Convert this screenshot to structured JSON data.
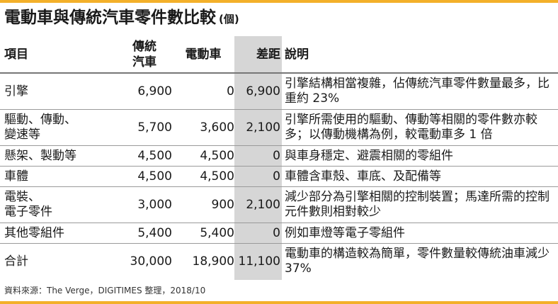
{
  "title": "電動車與傳統汽車零件數比較",
  "unit": "(個)",
  "headers": {
    "item": "項目",
    "conventional": "傳統\n汽車",
    "ev": "電動車",
    "gap": "差距",
    "note": "說明"
  },
  "rows": [
    {
      "item": "引擎",
      "conventional": "6,900",
      "ev": "0",
      "gap": "6,900",
      "note": "引擎結構相當複雜，佔傳統汽車零件數量最多，比重約 23%"
    },
    {
      "item": "驅動、傳動、\n變速等",
      "conventional": "5,700",
      "ev": "3,600",
      "gap": "2,100",
      "note": "引擎所需使用的驅動、傳動等相關的零件數亦較多；以傳動機構為例，較電動車多 1 倍"
    },
    {
      "item": "懸架、製動等",
      "conventional": "4,500",
      "ev": "4,500",
      "gap": "0",
      "note": "與車身穩定、避震相關的零組件"
    },
    {
      "item": "車體",
      "conventional": "4,500",
      "ev": "4,500",
      "gap": "0",
      "note": "車體含車殼、車底、及配備等"
    },
    {
      "item": "電裝、\n電子零件",
      "conventional": "3,000",
      "ev": "900",
      "gap": "2,100",
      "note": "減少部分為引擎相關的控制裝置；馬達所需的控制元件數則相對較少"
    },
    {
      "item": "其他零組件",
      "conventional": "5,400",
      "ev": "5,400",
      "gap": "0",
      "note": "例如車燈等電子零組件"
    },
    {
      "item": "合計",
      "conventional": "30,000",
      "ev": "18,900",
      "gap": "11,100",
      "note": "電動車的構造較為簡單，零件數量較傳統油車減少 37%"
    }
  ],
  "source": "資料來源：The Verge，DIGITIMES 整理，2018/10",
  "colors": {
    "accent": "#f3b02a",
    "gap_column": "#d6d6d6"
  }
}
